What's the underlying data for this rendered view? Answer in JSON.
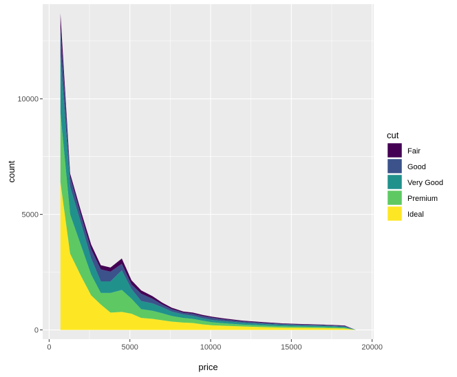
{
  "chart_data": {
    "type": "area",
    "stacked": true,
    "xlabel": "price",
    "ylabel": "count",
    "xlim": [
      -400,
      20100
    ],
    "ylim": [
      -400,
      14100
    ],
    "x_ticks": [
      0,
      5000,
      10000,
      15000,
      20000
    ],
    "y_ticks": [
      0,
      5000,
      10000
    ],
    "x_tick_labels": [
      "0",
      "5000",
      "10000",
      "15000",
      "20000"
    ],
    "y_tick_labels": [
      "0",
      "5000",
      "10000"
    ],
    "grid": true,
    "legend": {
      "title": "cut",
      "placement": "right"
    },
    "x": [
      700,
      1300,
      2000,
      2600,
      3200,
      3800,
      4500,
      5100,
      5700,
      6400,
      7000,
      7600,
      8300,
      8900,
      9500,
      10100,
      10800,
      12000,
      13200,
      14500,
      15800,
      17000,
      18300,
      19000
    ],
    "series": [
      {
        "name": "Ideal",
        "color": "#FDE725",
        "values": [
          6400,
          3300,
          2300,
          1500,
          1100,
          750,
          780,
          700,
          520,
          480,
          420,
          360,
          320,
          300,
          240,
          200,
          180,
          150,
          120,
          100,
          90,
          80,
          60,
          0
        ]
      },
      {
        "name": "Premium",
        "color": "#5EC962",
        "values": [
          3000,
          1700,
          1300,
          900,
          500,
          850,
          950,
          650,
          380,
          350,
          300,
          240,
          200,
          180,
          160,
          130,
          110,
          80,
          70,
          60,
          50,
          50,
          40,
          0
        ]
      },
      {
        "name": "Very Good",
        "color": "#21918C",
        "values": [
          2500,
          1200,
          950,
          700,
          500,
          500,
          850,
          420,
          350,
          320,
          260,
          190,
          150,
          130,
          110,
          100,
          90,
          80,
          70,
          60,
          50,
          50,
          40,
          0
        ]
      },
      {
        "name": "Good",
        "color": "#3B528B",
        "values": [
          1200,
          430,
          350,
          400,
          520,
          420,
          280,
          200,
          320,
          200,
          120,
          110,
          80,
          90,
          90,
          100,
          80,
          60,
          50,
          40,
          40,
          30,
          30,
          0
        ]
      },
      {
        "name": "Fair",
        "color": "#440154",
        "values": [
          600,
          140,
          170,
          200,
          180,
          180,
          230,
          180,
          140,
          110,
          80,
          60,
          50,
          50,
          50,
          40,
          40,
          30,
          30,
          20,
          20,
          20,
          20,
          0
        ]
      }
    ]
  }
}
